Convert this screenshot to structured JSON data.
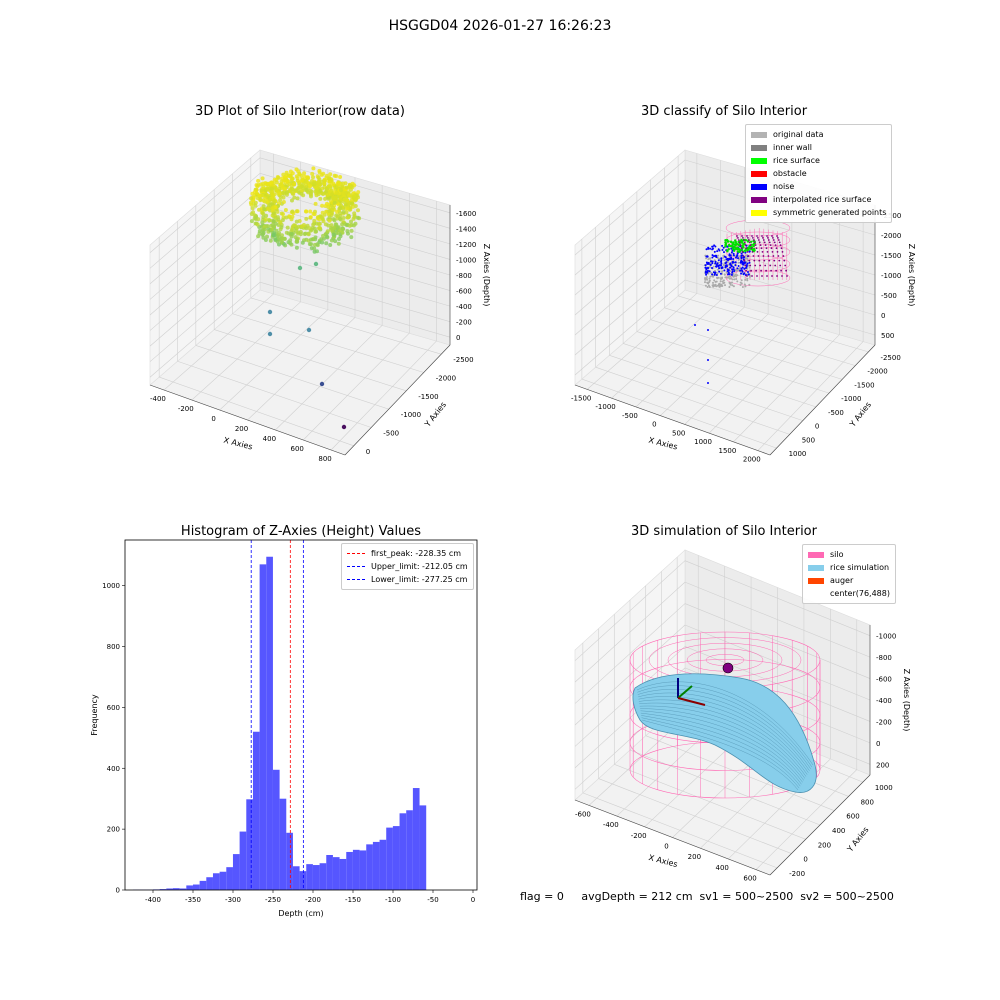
{
  "figure": {
    "suptitle": "HSGGD04 2026-01-27 16:26:23",
    "footer": "flag = 0     avgDepth = 212 cm  sv1 = 500~2500  sv2 = 500~2500"
  },
  "panels": {
    "raw": {
      "title": "3D Plot of Silo Interior(row data)",
      "xlabel": "X Axies",
      "ylabel": "Y Axies",
      "zlabel": "Z Axies (Depth)",
      "xticks": [
        "-400",
        "-200",
        "0",
        "200",
        "400",
        "600",
        "800"
      ],
      "yticks": [
        "0",
        "-500",
        "-1000",
        "-1500",
        "-2000",
        "-2500"
      ],
      "zticks": [
        "0",
        "-200",
        "-400",
        "-600",
        "-800",
        "-1000",
        "-1200",
        "-1400",
        "-1600"
      ]
    },
    "classify": {
      "title": "3D classify of Silo Interior",
      "xlabel": "X Axies",
      "ylabel": "Y Axies",
      "zlabel": "Z Axies (Depth)",
      "xticks": [
        "-1500",
        "-1000",
        "-500",
        "0",
        "500",
        "1000",
        "1500",
        "2000"
      ],
      "yticks": [
        "1000",
        "500",
        "0",
        "-500",
        "-1000",
        "-1500",
        "-2000",
        "-2500"
      ],
      "zticks": [
        "500",
        "0",
        "-500",
        "-1000",
        "-1500",
        "-2000",
        "-2500"
      ],
      "legend": [
        {
          "label": "original data",
          "color": "#b3b3b3"
        },
        {
          "label": "inner wall",
          "color": "#808080"
        },
        {
          "label": "rice surface",
          "color": "#00ff00"
        },
        {
          "label": "obstacle",
          "color": "#ff0000"
        },
        {
          "label": "noise",
          "color": "#0000ff"
        },
        {
          "label": "interpolated rice surface",
          "color": "#800080"
        },
        {
          "label": "symmetric generated points",
          "color": "#ffff00"
        }
      ]
    },
    "simulation": {
      "title": "3D simulation of Silo Interior",
      "xlabel": "X Axies",
      "ylabel": "Y Axies",
      "zlabel": "Z Axies (Depth)",
      "xticks": [
        "-600",
        "-400",
        "-200",
        "0",
        "200",
        "400",
        "600"
      ],
      "yticks": [
        "-200",
        "0",
        "200",
        "400",
        "600",
        "800",
        "1000"
      ],
      "zticks": [
        "200",
        "0",
        "-200",
        "-400",
        "-600",
        "-800",
        "-1000"
      ],
      "legend": [
        {
          "label": "silo",
          "color": "#ff69b4"
        },
        {
          "label": "rice simulation",
          "color": "#87ceeb"
        },
        {
          "label": "auger",
          "color": "#ff4500"
        },
        {
          "label": "center(76,488)",
          "color": ""
        }
      ]
    }
  },
  "chart_data": {
    "type": "bar",
    "title": "Histogram of Z-Axies (Height) Values",
    "xlabel": "Depth (cm)",
    "ylabel": "Frequency",
    "xlim": [
      -435,
      5
    ],
    "ylim": [
      0,
      1150
    ],
    "xticks": [
      -400,
      -350,
      -300,
      -250,
      -200,
      -150,
      -100,
      -50,
      0
    ],
    "yticks": [
      0,
      200,
      400,
      600,
      800,
      1000
    ],
    "bin_edges_start": -425,
    "bin_width": 8.33,
    "values": [
      1,
      1,
      1,
      2,
      3,
      5,
      6,
      5,
      15,
      18,
      30,
      42,
      55,
      60,
      75,
      118,
      192,
      298,
      520,
      1070,
      1095,
      395,
      300,
      188,
      78,
      62,
      85,
      82,
      88,
      115,
      108,
      102,
      125,
      132,
      130,
      150,
      158,
      165,
      205,
      210,
      252,
      262,
      335,
      278
    ],
    "lines": [
      {
        "label": "first_peak: -228.35 cm",
        "x": -228.35,
        "color": "#ff0000"
      },
      {
        "label": "Upper_limit: -212.05 cm",
        "x": -212.05,
        "color": "#0000ff"
      },
      {
        "label": "Lower_limit: -277.25 cm",
        "x": -277.25,
        "color": "#0000ff"
      }
    ],
    "legend_position": "upper right",
    "bar_color": "#4d4dff"
  }
}
